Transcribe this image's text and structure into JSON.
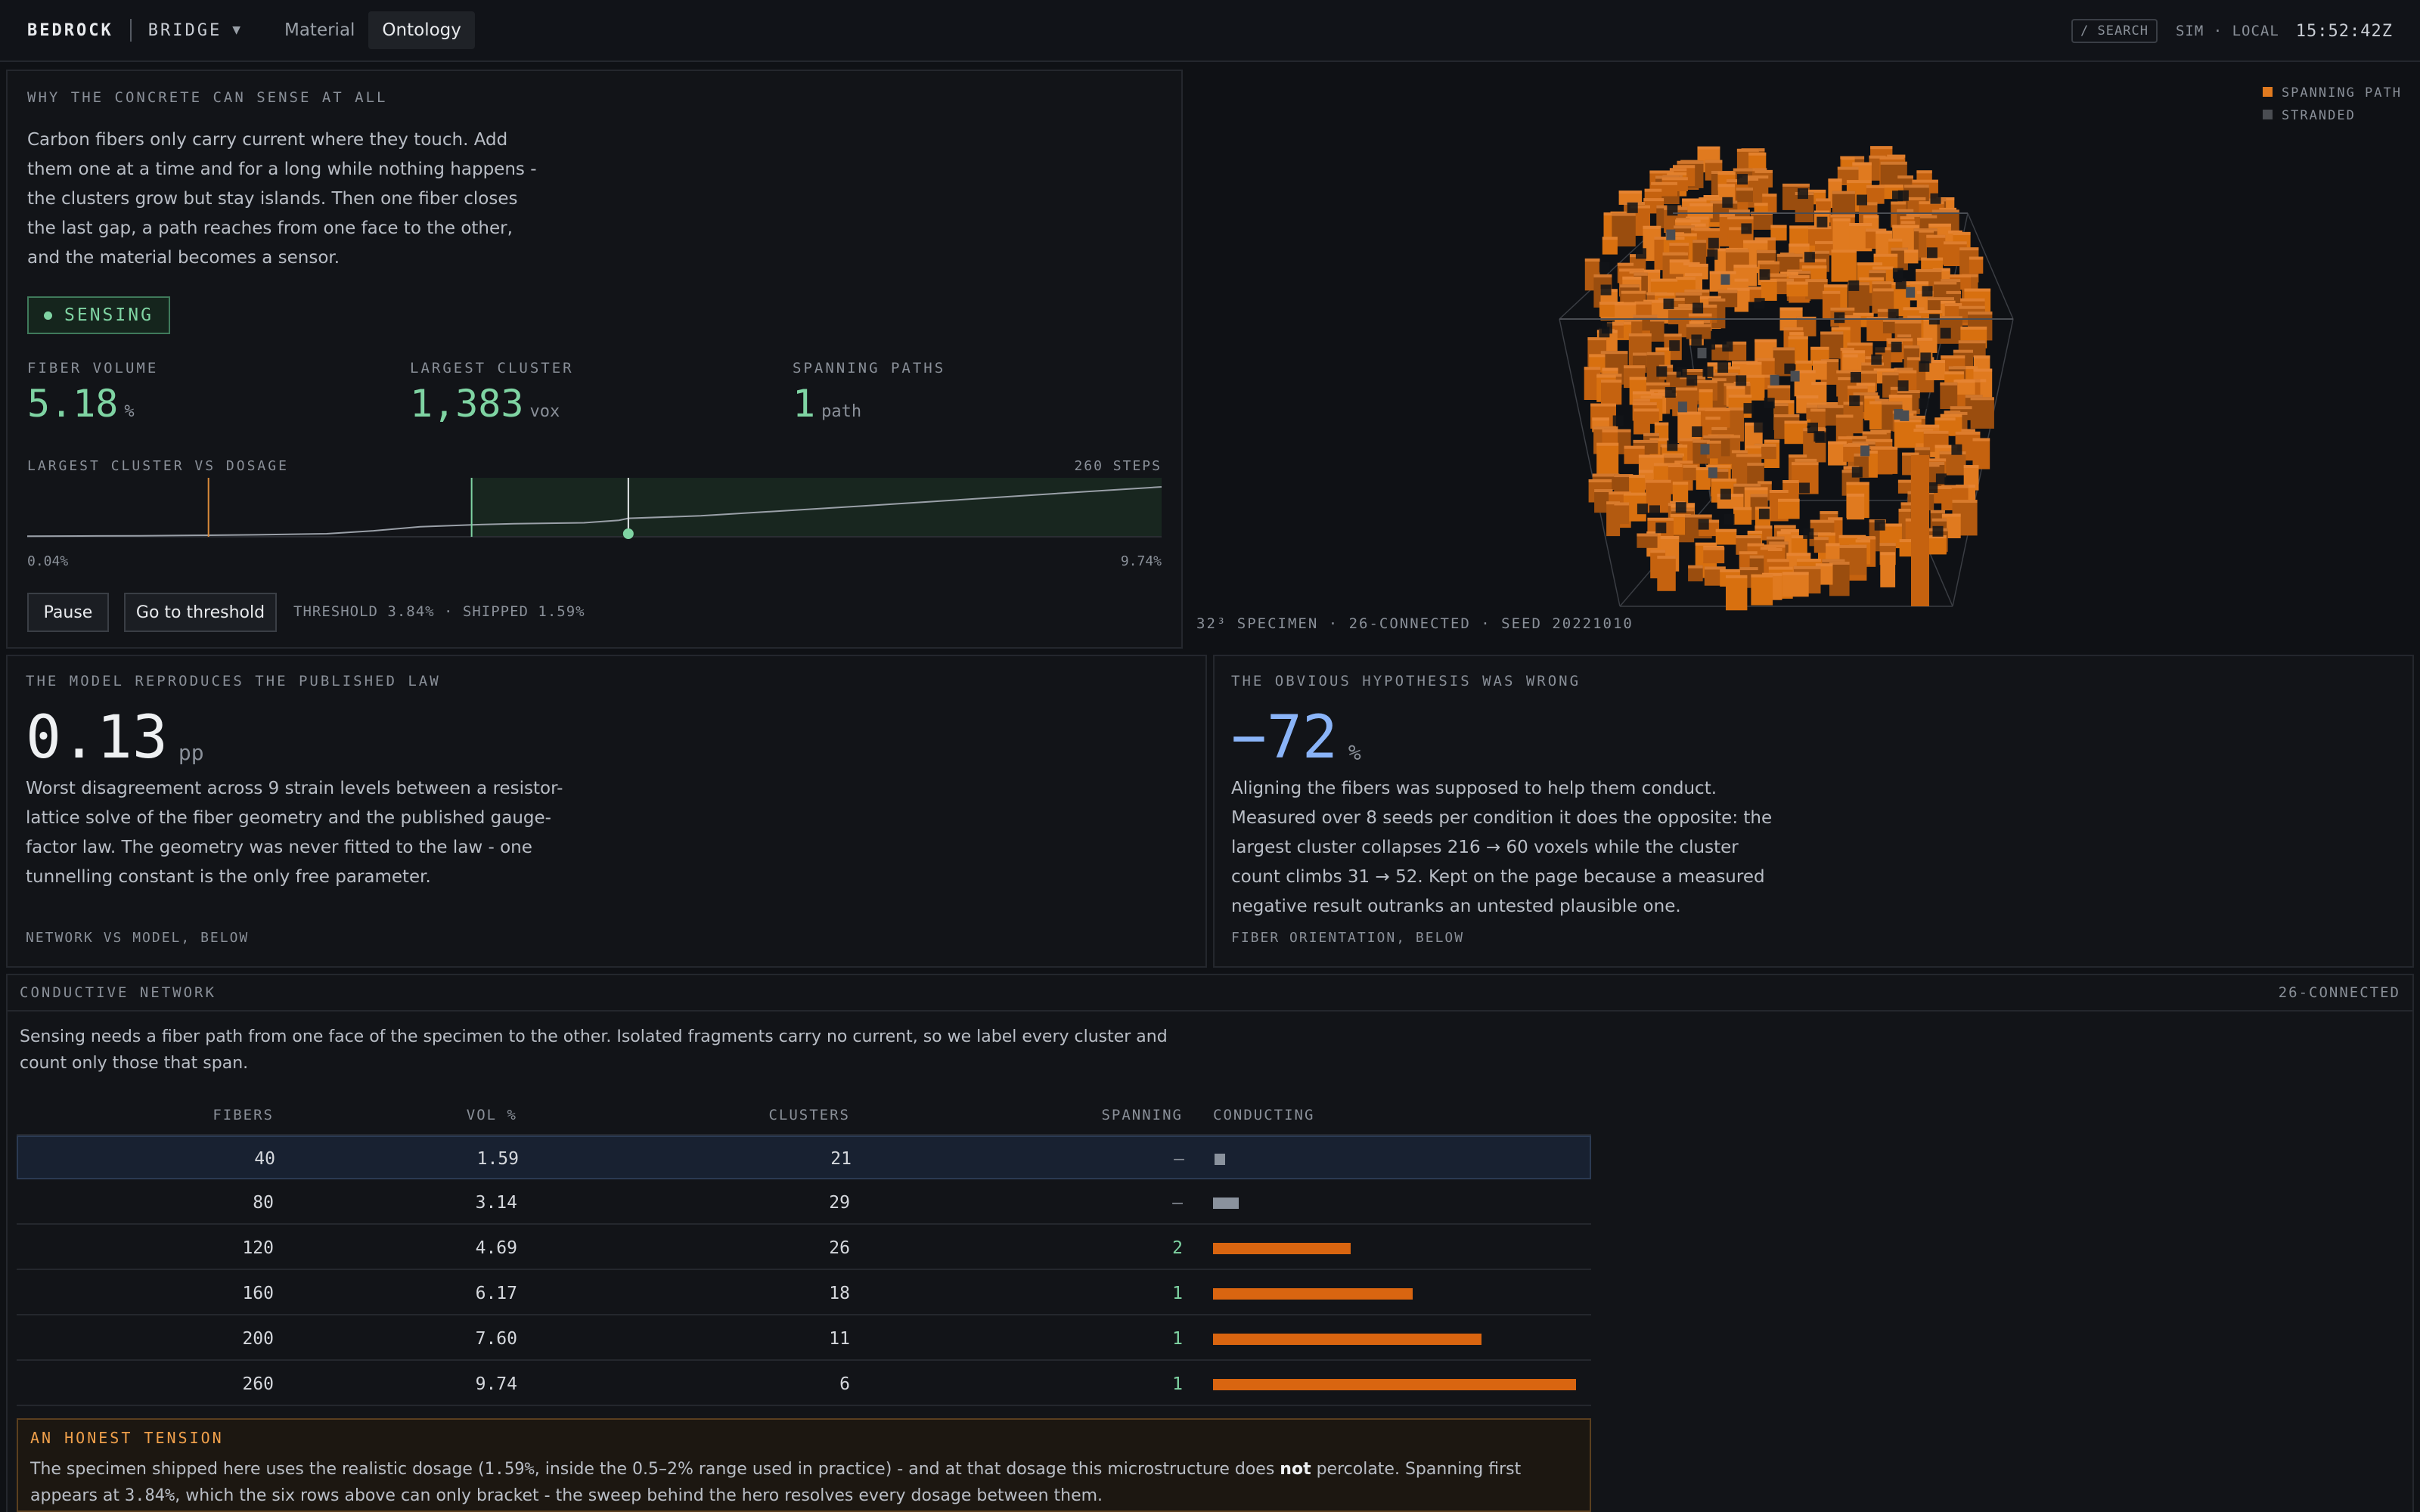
{
  "topbar": {
    "brand": "BEDROCK",
    "product": "BRIDGE",
    "product_caret": "▼",
    "tabs": [
      {
        "label": "Material"
      },
      {
        "label": "Ontology"
      }
    ],
    "active_tab": "Ontology",
    "search_label": "/ SEARCH",
    "environment": "SIM · LOCAL",
    "clock": "15:52:42Z"
  },
  "hero": {
    "heading": "WHY THE CONCRETE CAN SENSE AT ALL",
    "description": "Carbon fibers only carry current where they touch. Add them one at a time and for a long while nothing happens - the clusters grow but stay islands. Then one fiber closes the last gap, a path reaches from one face to the other, and the material becomes a sensor.",
    "status": "SENSING",
    "metrics": [
      {
        "label": "FIBER VOLUME",
        "value": "5.18",
        "unit": "%"
      },
      {
        "label": "LARGEST CLUSTER",
        "value": "1,383",
        "unit": "vox"
      },
      {
        "label": "SPANNING PATHS",
        "value": "1",
        "unit": "path"
      }
    ],
    "sparkline": {
      "title": "LARGEST CLUSTER VS DOSAGE",
      "steps_label": "260 STEPS",
      "x_min_label": "0.04%",
      "x_max_label": "9.74%",
      "x_min": 0.04,
      "x_max": 9.74,
      "shipped": 1.59,
      "threshold": 3.84,
      "current": 5.18,
      "points": [
        [
          0.04,
          0.01
        ],
        [
          0.5,
          0.015
        ],
        [
          1.0,
          0.02
        ],
        [
          1.59,
          0.03
        ],
        [
          2.0,
          0.04
        ],
        [
          2.6,
          0.06
        ],
        [
          3.0,
          0.12
        ],
        [
          3.4,
          0.2
        ],
        [
          3.84,
          0.24
        ],
        [
          4.2,
          0.26
        ],
        [
          4.8,
          0.28
        ],
        [
          5.1,
          0.33
        ],
        [
          5.18,
          0.37
        ],
        [
          5.8,
          0.42
        ],
        [
          6.5,
          0.52
        ],
        [
          7.2,
          0.62
        ],
        [
          8.0,
          0.74
        ],
        [
          8.8,
          0.86
        ],
        [
          9.74,
          1.0
        ]
      ],
      "pause_label": "Pause",
      "goto_label": "Go to threshold",
      "footnote": "THRESHOLD 3.84% · SHIPPED 1.59%"
    }
  },
  "viewer": {
    "legend": [
      {
        "label": "SPANNING PATH",
        "color": "#e07a1f"
      },
      {
        "label": "STRANDED",
        "color": "#4a4d52"
      }
    ],
    "caption": "32³ SPECIMEN · 26-CONNECTED · SEED 20221010"
  },
  "model_card": {
    "heading": "THE MODEL REPRODUCES THE PUBLISHED LAW",
    "value": "0.13",
    "unit": "pp",
    "description": "Worst disagreement across 9 strain levels between a resistor-lattice solve of the fiber geometry and the published gauge-factor law. The geometry was never fitted to the law - one tunnelling constant is the only free parameter.",
    "footer": "NETWORK VS MODEL, BELOW"
  },
  "hypothesis_card": {
    "heading": "THE OBVIOUS HYPOTHESIS WAS WRONG",
    "value": "−72",
    "unit": "%",
    "description": "Aligning the fibers was supposed to help them conduct. Measured over 8 seeds per condition it does the opposite: the largest cluster collapses 216 → 60 voxels while the cluster count climbs 31 → 52. Kept on the page because a measured negative result outranks an untested plausible one.",
    "footer": "FIBER ORIENTATION, BELOW"
  },
  "network": {
    "heading": "CONDUCTIVE NETWORK",
    "connectivity": "26-CONNECTED",
    "description": "Sensing needs a fiber path from one face of the specimen to the other. Isolated fragments carry no current, so we label every cluster and count only those that span.",
    "columns": [
      "FIBERS",
      "VOL %",
      "CLUSTERS",
      "SPANNING",
      "CONDUCTING"
    ],
    "rows": [
      {
        "fibers": "40",
        "vol": "1.59",
        "clusters": "21",
        "spanning": "–",
        "conducting": 0.03,
        "spans": false
      },
      {
        "fibers": "80",
        "vol": "3.14",
        "clusters": "29",
        "spanning": "–",
        "conducting": 0.07,
        "spans": false
      },
      {
        "fibers": "120",
        "vol": "4.69",
        "clusters": "26",
        "spanning": "2",
        "conducting": 0.38,
        "spans": true
      },
      {
        "fibers": "160",
        "vol": "6.17",
        "clusters": "18",
        "spanning": "1",
        "conducting": 0.55,
        "spans": true
      },
      {
        "fibers": "200",
        "vol": "7.60",
        "clusters": "11",
        "spanning": "1",
        "conducting": 0.74,
        "spans": true
      },
      {
        "fibers": "260",
        "vol": "9.74",
        "clusters": "6",
        "spanning": "1",
        "conducting": 1.0,
        "spans": true
      }
    ],
    "tension": {
      "heading": "AN HONEST TENSION",
      "text_1": "The specimen shipped here uses the realistic dosage (",
      "dose": "1.59%",
      "text_2": ", inside the 0.5–2% range used in practice) - and at that dosage this microstructure does ",
      "emphasis": "not",
      "text_3": " percolate. Spanning first appears at ",
      "threshold": "3.84%",
      "text_4": ", which the six rows above can only bracket - the sweep behind the hero resolves every dosage between them."
    }
  }
}
